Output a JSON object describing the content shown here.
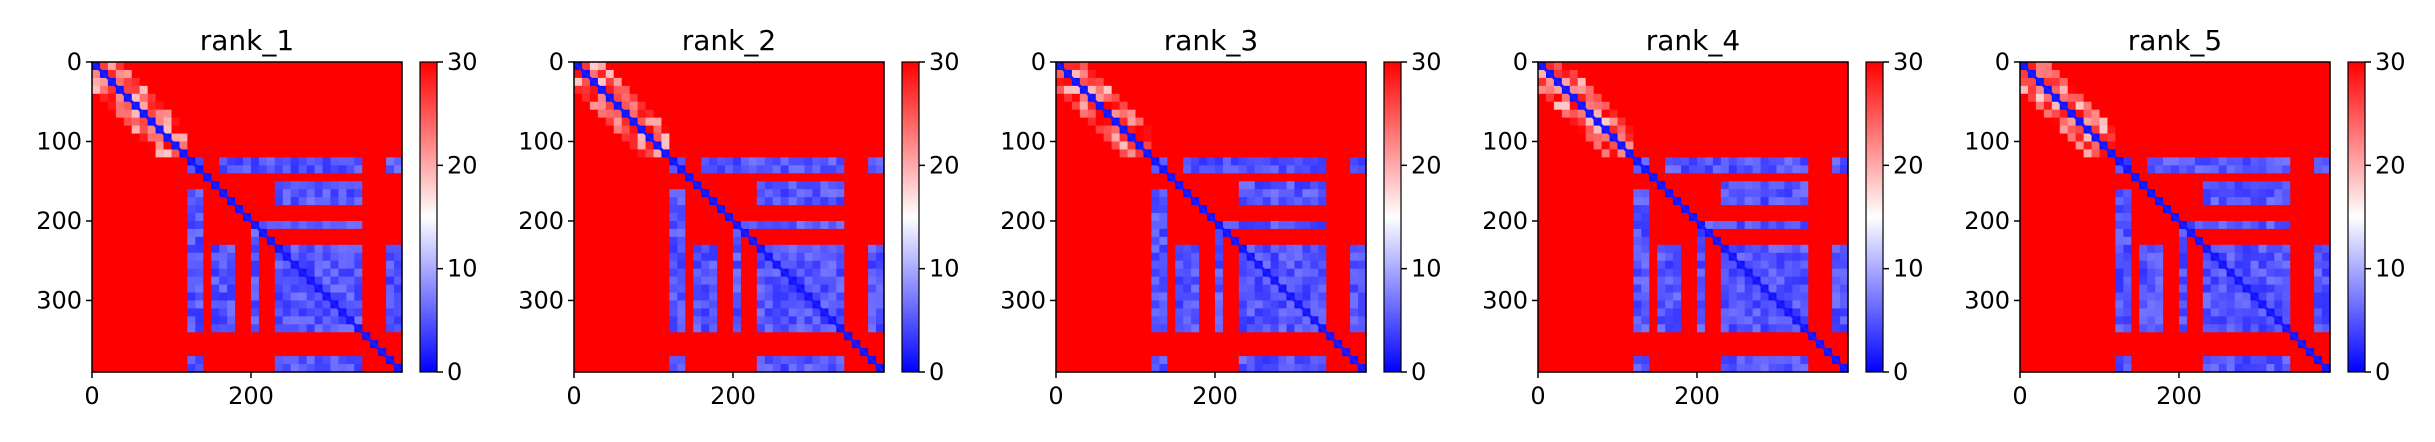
{
  "chart_data": [
    {
      "type": "heatmap",
      "title": "rank_1",
      "xticks": [
        0,
        200
      ],
      "yticks": [
        0,
        100,
        200,
        300
      ],
      "colorbar_ticks": [
        0,
        10,
        20,
        30
      ],
      "colorbar_range": [
        0,
        30
      ],
      "colormap": "bwr",
      "matrix_size": 390,
      "grid": false,
      "description_values": {
        "diagonal": 0,
        "background": 30,
        "blocks": [
          {
            "x": [
              118,
              143
            ],
            "y": [
              118,
              143
            ],
            "value": 2
          },
          {
            "x": [
              160,
              345
            ],
            "y": [
              118,
              143
            ],
            "value": 2
          },
          {
            "x": [
              118,
              143
            ],
            "y": [
              160,
              345
            ],
            "value": 2
          },
          {
            "x": [
              195,
              265
            ],
            "y": [
              195,
              265
            ],
            "value": 2
          },
          {
            "x": [
              235,
              345
            ],
            "y": [
              235,
              345
            ],
            "value": 2
          }
        ]
      }
    },
    {
      "type": "heatmap",
      "title": "rank_2",
      "xticks": [
        0,
        200
      ],
      "yticks": [
        0,
        100,
        200,
        300
      ],
      "colorbar_ticks": [
        0,
        10,
        20,
        30
      ],
      "colorbar_range": [
        0,
        30
      ],
      "colormap": "bwr",
      "matrix_size": 390,
      "grid": false
    },
    {
      "type": "heatmap",
      "title": "rank_3",
      "xticks": [
        0,
        200
      ],
      "yticks": [
        0,
        100,
        200,
        300
      ],
      "colorbar_ticks": [
        0,
        10,
        20,
        30
      ],
      "colorbar_range": [
        0,
        30
      ],
      "colormap": "bwr",
      "matrix_size": 390,
      "grid": false
    },
    {
      "type": "heatmap",
      "title": "rank_4",
      "xticks": [
        0,
        200
      ],
      "yticks": [
        0,
        100,
        200,
        300
      ],
      "colorbar_ticks": [
        0,
        10,
        20,
        30
      ],
      "colorbar_range": [
        0,
        30
      ],
      "colormap": "bwr",
      "matrix_size": 390,
      "grid": false
    },
    {
      "type": "heatmap",
      "title": "rank_5",
      "xticks": [
        0,
        200
      ],
      "yticks": [
        0,
        100,
        200,
        300
      ],
      "colorbar_ticks": [
        0,
        10,
        20,
        30
      ],
      "colorbar_range": [
        0,
        30
      ],
      "colormap": "bwr",
      "matrix_size": 390,
      "grid": false
    }
  ],
  "colors": {
    "high": "#ff0000",
    "mid": "#ffffff",
    "low": "#0000ff",
    "axis": "#000000"
  }
}
